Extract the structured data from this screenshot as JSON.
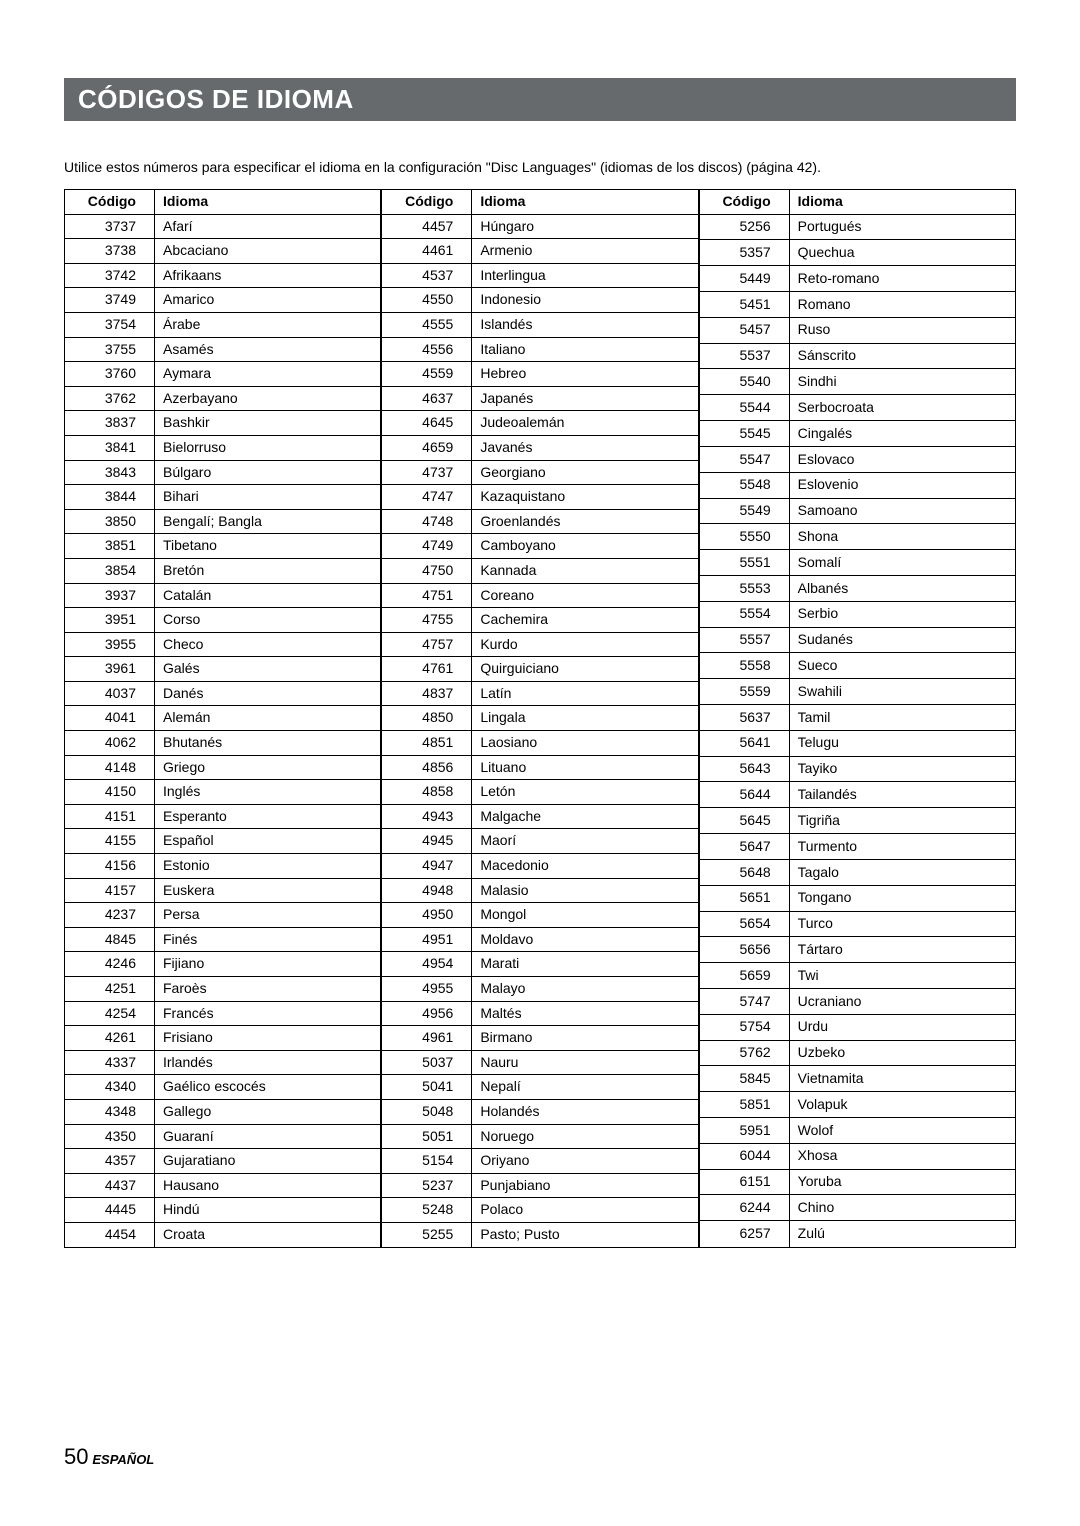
{
  "title": "CÓDIGOS DE IDIOMA",
  "intro": "Utilice estos números para especificar el idioma en la configuración \"Disc Languages\" (idiomas de los discos) (página 42).",
  "headers": {
    "code": "Código",
    "language": "Idioma"
  },
  "columns": [
    [
      [
        "3737",
        "Afarí"
      ],
      [
        "3738",
        "Abcaciano"
      ],
      [
        "3742",
        "Afrikaans"
      ],
      [
        "3749",
        "Amarico"
      ],
      [
        "3754",
        "Árabe"
      ],
      [
        "3755",
        "Asamés"
      ],
      [
        "3760",
        "Aymara"
      ],
      [
        "3762",
        "Azerbayano"
      ],
      [
        "3837",
        "Bashkir"
      ],
      [
        "3841",
        "Bielorruso"
      ],
      [
        "3843",
        "Búlgaro"
      ],
      [
        "3844",
        "Bihari"
      ],
      [
        "3850",
        "Bengalí; Bangla"
      ],
      [
        "3851",
        "Tibetano"
      ],
      [
        "3854",
        "Bretón"
      ],
      [
        "3937",
        "Catalán"
      ],
      [
        "3951",
        "Corso"
      ],
      [
        "3955",
        "Checo"
      ],
      [
        "3961",
        "Galés"
      ],
      [
        "4037",
        "Danés"
      ],
      [
        "4041",
        "Alemán"
      ],
      [
        "4062",
        "Bhutanés"
      ],
      [
        "4148",
        "Griego"
      ],
      [
        "4150",
        "Inglés"
      ],
      [
        "4151",
        "Esperanto"
      ],
      [
        "4155",
        "Español"
      ],
      [
        "4156",
        "Estonio"
      ],
      [
        "4157",
        "Euskera"
      ],
      [
        "4237",
        "Persa"
      ],
      [
        "4845",
        "Finés"
      ],
      [
        "4246",
        "Fijiano"
      ],
      [
        "4251",
        "Faroès"
      ],
      [
        "4254",
        "Francés"
      ],
      [
        "4261",
        "Frisiano"
      ],
      [
        "4337",
        "Irlandés"
      ],
      [
        "4340",
        "Gaélico escocés"
      ],
      [
        "4348",
        "Gallego"
      ],
      [
        "4350",
        "Guaraní"
      ],
      [
        "4357",
        "Gujaratiano"
      ],
      [
        "4437",
        "Hausano"
      ],
      [
        "4445",
        "Hindú"
      ],
      [
        "4454",
        "Croata"
      ]
    ],
    [
      [
        "4457",
        "Húngaro"
      ],
      [
        "4461",
        "Armenio"
      ],
      [
        "4537",
        "Interlingua"
      ],
      [
        "4550",
        "Indonesio"
      ],
      [
        "4555",
        "Islandés"
      ],
      [
        "4556",
        "Italiano"
      ],
      [
        "4559",
        "Hebreo"
      ],
      [
        "4637",
        "Japanés"
      ],
      [
        "4645",
        "Judeoalemán"
      ],
      [
        "4659",
        "Javanés"
      ],
      [
        "4737",
        "Georgiano"
      ],
      [
        "4747",
        "Kazaquistano"
      ],
      [
        "4748",
        "Groenlandés"
      ],
      [
        "4749",
        "Camboyano"
      ],
      [
        "4750",
        "Kannada"
      ],
      [
        "4751",
        "Coreano"
      ],
      [
        "4755",
        "Cachemira"
      ],
      [
        "4757",
        "Kurdo"
      ],
      [
        "4761",
        "Quirguiciano"
      ],
      [
        "4837",
        "Latín"
      ],
      [
        "4850",
        "Lingala"
      ],
      [
        "4851",
        "Laosiano"
      ],
      [
        "4856",
        "Lituano"
      ],
      [
        "4858",
        "Letón"
      ],
      [
        "4943",
        "Malgache"
      ],
      [
        "4945",
        "Maorí"
      ],
      [
        "4947",
        "Macedonio"
      ],
      [
        "4948",
        "Malasio"
      ],
      [
        "4950",
        "Mongol"
      ],
      [
        "4951",
        "Moldavo"
      ],
      [
        "4954",
        "Marati"
      ],
      [
        "4955",
        "Malayo"
      ],
      [
        "4956",
        "Maltés"
      ],
      [
        "4961",
        "Birmano"
      ],
      [
        "5037",
        "Nauru"
      ],
      [
        "5041",
        "Nepalí"
      ],
      [
        "5048",
        "Holandés"
      ],
      [
        "5051",
        "Noruego"
      ],
      [
        "5154",
        "Oriyano"
      ],
      [
        "5237",
        "Punjabiano"
      ],
      [
        "5248",
        "Polaco"
      ],
      [
        "5255",
        "Pasto; Pusto"
      ]
    ],
    [
      [
        "5256",
        "Portugués"
      ],
      [
        "5357",
        "Quechua"
      ],
      [
        "5449",
        "Reto-romano"
      ],
      [
        "5451",
        "Romano"
      ],
      [
        "5457",
        "Ruso"
      ],
      [
        "5537",
        "Sánscrito"
      ],
      [
        "5540",
        "Sindhi"
      ],
      [
        "5544",
        "Serbocroata"
      ],
      [
        "5545",
        "Cingalés"
      ],
      [
        "5547",
        "Eslovaco"
      ],
      [
        "5548",
        "Eslovenio"
      ],
      [
        "5549",
        "Samoano"
      ],
      [
        "5550",
        "Shona"
      ],
      [
        "5551",
        "Somalí"
      ],
      [
        "5553",
        "Albanés"
      ],
      [
        "5554",
        "Serbio"
      ],
      [
        "5557",
        "Sudanés"
      ],
      [
        "5558",
        "Sueco"
      ],
      [
        "5559",
        "Swahili"
      ],
      [
        "5637",
        "Tamil"
      ],
      [
        "5641",
        "Telugu"
      ],
      [
        "5643",
        "Tayiko"
      ],
      [
        "5644",
        "Tailandés"
      ],
      [
        "5645",
        "Tigriña"
      ],
      [
        "5647",
        "Turmento"
      ],
      [
        "5648",
        "Tagalo"
      ],
      [
        "5651",
        "Tongano"
      ],
      [
        "5654",
        "Turco"
      ],
      [
        "5656",
        "Tártaro"
      ],
      [
        "5659",
        "Twi"
      ],
      [
        "5747",
        "Ucraniano"
      ],
      [
        "5754",
        "Urdu"
      ],
      [
        "5762",
        "Uzbeko"
      ],
      [
        "5845",
        "Vietnamita"
      ],
      [
        "5851",
        "Volapuk"
      ],
      [
        "5951",
        "Wolof"
      ],
      [
        "6044",
        "Xhosa"
      ],
      [
        "6151",
        "Yoruba"
      ],
      [
        "6244",
        "Chino"
      ],
      [
        "6257",
        "Zulú"
      ]
    ]
  ],
  "footer": {
    "page_number": "50",
    "language_label": "ESPAÑOL"
  },
  "style": {
    "title_bg": "#666a6d",
    "title_color": "#ffffff",
    "body_bg": "#ffffff",
    "border_color": "#000000",
    "body_fontsize": 14,
    "title_fontsize": 26
  }
}
